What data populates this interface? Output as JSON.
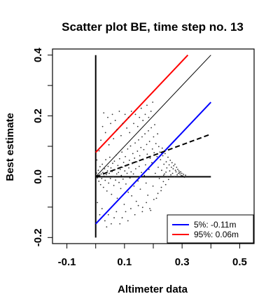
{
  "chart_data": {
    "type": "scatter",
    "title": "Scatter plot BE, time step no. 13",
    "xlabel": "Altimeter data",
    "ylabel": "Best estimate",
    "xlim": [
      -0.15,
      0.55
    ],
    "ylim": [
      -0.22,
      0.42
    ],
    "xticks": [
      -0.1,
      0.1,
      0.3,
      0.5
    ],
    "xtick_labels": [
      "-0.1",
      "0.1",
      "0.3",
      "0.5"
    ],
    "xticks_minor": [
      0.0,
      0.2,
      0.4
    ],
    "yticks": [
      -0.2,
      0.0,
      0.2,
      0.4
    ],
    "ytick_labels": [
      "-0.2",
      "0.0",
      "0.2",
      "0.4"
    ],
    "yticks_minor": [
      -0.1,
      0.1,
      0.3
    ],
    "grid": false,
    "legend_position": "bottom-right",
    "legend": [
      {
        "label": "5%: -0.11m",
        "color": "#0000ff"
      },
      {
        "label": "95%:  0.06m",
        "color": "#ff0000"
      }
    ],
    "lines": [
      {
        "role": "vertical-axis-line",
        "color": "#000000",
        "style": "solid",
        "width": 2,
        "points": [
          [
            0.0,
            -0.2
          ],
          [
            0.0,
            0.4
          ]
        ]
      },
      {
        "role": "horizontal-zero-line",
        "color": "#000000",
        "style": "solid",
        "width": 2,
        "points": [
          [
            0.0,
            0.0
          ],
          [
            0.4,
            0.0
          ]
        ]
      },
      {
        "role": "identity-line",
        "color": "#000000",
        "style": "solid",
        "width": 1,
        "points": [
          [
            0.0,
            0.0
          ],
          [
            0.4,
            0.4
          ]
        ]
      },
      {
        "role": "upper-95",
        "color": "#ff0000",
        "style": "solid",
        "width": 2,
        "points": [
          [
            0.0,
            0.08
          ],
          [
            0.32,
            0.4
          ]
        ]
      },
      {
        "role": "lower-5",
        "color": "#0000ff",
        "style": "solid",
        "width": 2,
        "points": [
          [
            0.0,
            -0.155
          ],
          [
            0.4,
            0.245
          ]
        ]
      },
      {
        "role": "regression-fit",
        "color": "#000000",
        "style": "dashed",
        "width": 2,
        "points": [
          [
            0.0,
            0.0
          ],
          [
            0.4,
            0.14
          ]
        ]
      }
    ],
    "points": [
      [
        0.003,
        0.012
      ],
      [
        0.006,
        -0.004
      ],
      [
        0.009,
        0.021
      ],
      [
        0.011,
        -0.015
      ],
      [
        0.013,
        0.004
      ],
      [
        0.015,
        0.033
      ],
      [
        0.017,
        -0.026
      ],
      [
        0.019,
        0.009
      ],
      [
        0.021,
        -0.006
      ],
      [
        0.023,
        0.041
      ],
      [
        0.025,
        0.014
      ],
      [
        0.027,
        -0.035
      ],
      [
        0.029,
        0.002
      ],
      [
        0.031,
        0.026
      ],
      [
        0.033,
        -0.012
      ],
      [
        0.035,
        0.056
      ],
      [
        0.037,
        0.007
      ],
      [
        0.039,
        -0.047
      ],
      [
        0.041,
        0.019
      ],
      [
        0.043,
        0.034
      ],
      [
        0.045,
        -0.021
      ],
      [
        0.047,
        0.011
      ],
      [
        0.049,
        0.064
      ],
      [
        0.051,
        -0.006
      ],
      [
        0.053,
        0.029
      ],
      [
        0.055,
        -0.058
      ],
      [
        0.057,
        0.017
      ],
      [
        0.059,
        0.044
      ],
      [
        0.061,
        0.001
      ],
      [
        0.063,
        -0.029
      ],
      [
        0.065,
        0.051
      ],
      [
        0.067,
        0.023
      ],
      [
        0.069,
        -0.011
      ],
      [
        0.071,
        0.071
      ],
      [
        0.073,
        0.009
      ],
      [
        0.075,
        -0.071
      ],
      [
        0.077,
        0.037
      ],
      [
        0.079,
        0.014
      ],
      [
        0.081,
        -0.019
      ],
      [
        0.083,
        0.059
      ],
      [
        0.085,
        0.024
      ],
      [
        0.087,
        -0.039
      ],
      [
        0.089,
        0.004
      ],
      [
        0.091,
        0.081
      ],
      [
        0.093,
        0.031
      ],
      [
        0.095,
        -0.008
      ],
      [
        0.097,
        0.047
      ],
      [
        0.099,
        -0.091
      ],
      [
        0.101,
        0.019
      ],
      [
        0.103,
        0.066
      ],
      [
        0.105,
        -0.024
      ],
      [
        0.107,
        0.036
      ],
      [
        0.109,
        0.011
      ],
      [
        0.111,
        0.091
      ],
      [
        0.113,
        -0.051
      ],
      [
        0.115,
        0.029
      ],
      [
        0.117,
        0.054
      ],
      [
        0.119,
        -0.004
      ],
      [
        0.121,
        0.101
      ],
      [
        0.123,
        0.016
      ],
      [
        0.125,
        -0.063
      ],
      [
        0.127,
        0.043
      ],
      [
        0.129,
        0.076
      ],
      [
        0.131,
        0.009
      ],
      [
        0.133,
        -0.031
      ],
      [
        0.135,
        0.061
      ],
      [
        0.137,
        0.111
      ],
      [
        0.139,
        0.026
      ],
      [
        0.141,
        -0.081
      ],
      [
        0.143,
        0.049
      ],
      [
        0.145,
        0.084
      ],
      [
        0.147,
        -0.014
      ],
      [
        0.149,
        0.121
      ],
      [
        0.151,
        0.034
      ],
      [
        0.153,
        0.069
      ],
      [
        0.155,
        -0.041
      ],
      [
        0.157,
        0.096
      ],
      [
        0.159,
        0.014
      ],
      [
        0.161,
        0.131
      ],
      [
        0.163,
        -0.101
      ],
      [
        0.165,
        0.056
      ],
      [
        0.167,
        0.089
      ],
      [
        0.169,
        0.004
      ],
      [
        0.171,
        0.141
      ],
      [
        0.173,
        0.039
      ],
      [
        0.175,
        -0.021
      ],
      [
        0.177,
        0.106
      ],
      [
        0.179,
        0.074
      ],
      [
        0.181,
        -0.061
      ],
      [
        0.183,
        0.151
      ],
      [
        0.185,
        0.024
      ],
      [
        0.187,
        0.116
      ],
      [
        0.189,
        0.061
      ],
      [
        0.191,
        -0.111
      ],
      [
        0.193,
        0.161
      ],
      [
        0.195,
        0.046
      ],
      [
        0.197,
        0.091
      ],
      [
        0.199,
        -0.031
      ],
      [
        0.201,
        0.131
      ],
      [
        0.203,
        0.079
      ],
      [
        0.205,
        0.171
      ],
      [
        0.207,
        0.011
      ],
      [
        0.209,
        0.109
      ],
      [
        0.211,
        -0.071
      ],
      [
        0.213,
        0.066
      ],
      [
        0.215,
        0.141
      ],
      [
        0.217,
        0.031
      ],
      [
        0.219,
        0.099
      ],
      [
        0.221,
        -0.006
      ],
      [
        0.223,
        0.081
      ],
      [
        0.225,
        0.056
      ],
      [
        0.227,
        -0.046
      ],
      [
        0.229,
        0.021
      ],
      [
        0.231,
        0.094
      ],
      [
        0.233,
        0.069
      ],
      [
        0.235,
        -0.016
      ],
      [
        0.237,
        0.041
      ],
      [
        0.239,
        0.009
      ],
      [
        0.241,
        0.076
      ],
      [
        0.243,
        -0.026
      ],
      [
        0.245,
        0.049
      ],
      [
        0.247,
        0.029
      ],
      [
        0.249,
        0.001
      ],
      [
        0.251,
        0.064
      ],
      [
        0.253,
        -0.009
      ],
      [
        0.255,
        0.039
      ],
      [
        0.257,
        0.019
      ],
      [
        0.259,
        0.054
      ],
      [
        0.261,
        0.006
      ],
      [
        0.263,
        0.031
      ],
      [
        0.265,
        0.046
      ],
      [
        0.267,
        0.011
      ],
      [
        0.269,
        0.026
      ],
      [
        0.271,
        0.036
      ],
      [
        0.273,
        0.001
      ],
      [
        0.275,
        0.041
      ],
      [
        0.277,
        0.021
      ],
      [
        0.279,
        0.016
      ],
      [
        0.281,
        0.031
      ],
      [
        0.283,
        0.006
      ],
      [
        0.285,
        0.024
      ],
      [
        0.287,
        0.011
      ],
      [
        0.289,
        0.019
      ],
      [
        0.291,
        0.014
      ],
      [
        0.293,
        0.009
      ],
      [
        0.295,
        0.016
      ],
      [
        0.297,
        0.004
      ],
      [
        0.299,
        0.011
      ],
      [
        0.302,
        0.003
      ],
      [
        0.305,
        0.008
      ],
      [
        0.308,
        -0.002
      ],
      [
        0.312,
        0.005
      ],
      [
        0.004,
        0.055
      ],
      [
        0.012,
        0.085
      ],
      [
        0.018,
        0.12
      ],
      [
        0.024,
        0.165
      ],
      [
        0.028,
        0.21
      ],
      [
        0.034,
        0.145
      ],
      [
        0.042,
        0.195
      ],
      [
        0.046,
        0.105
      ],
      [
        0.052,
        0.175
      ],
      [
        0.058,
        0.205
      ],
      [
        0.062,
        0.125
      ],
      [
        0.068,
        0.185
      ],
      [
        0.074,
        0.155
      ],
      [
        0.082,
        0.215
      ],
      [
        0.088,
        0.135
      ],
      [
        0.094,
        0.175
      ],
      [
        0.102,
        0.205
      ],
      [
        0.108,
        0.16
      ],
      [
        0.114,
        0.195
      ],
      [
        0.118,
        0.145
      ],
      [
        0.124,
        0.215
      ],
      [
        0.132,
        0.175
      ],
      [
        0.138,
        0.205
      ],
      [
        0.146,
        0.165
      ],
      [
        0.152,
        0.195
      ],
      [
        0.158,
        0.225
      ],
      [
        0.164,
        0.185
      ],
      [
        0.172,
        0.205
      ],
      [
        0.178,
        0.235
      ],
      [
        0.184,
        0.195
      ],
      [
        0.192,
        0.215
      ],
      [
        0.198,
        0.245
      ],
      [
        0.006,
        -0.085
      ],
      [
        0.014,
        -0.125
      ],
      [
        0.022,
        -0.105
      ],
      [
        0.032,
        -0.145
      ],
      [
        0.038,
        -0.165
      ],
      [
        0.044,
        -0.125
      ],
      [
        0.054,
        -0.155
      ],
      [
        0.064,
        -0.135
      ],
      [
        0.072,
        -0.115
      ],
      [
        0.084,
        -0.155
      ],
      [
        0.092,
        -0.135
      ],
      [
        0.104,
        -0.115
      ],
      [
        0.112,
        -0.145
      ],
      [
        0.122,
        -0.105
      ],
      [
        0.136,
        -0.125
      ],
      [
        0.148,
        -0.095
      ],
      [
        0.162,
        -0.115
      ],
      [
        0.176,
        -0.085
      ],
      [
        0.188,
        -0.105
      ],
      [
        0.202,
        -0.075
      ],
      [
        0.216,
        -0.055
      ],
      [
        0.228,
        -0.035
      ],
      [
        0.236,
        0.005
      ],
      [
        0.244,
        0.015
      ]
    ]
  }
}
